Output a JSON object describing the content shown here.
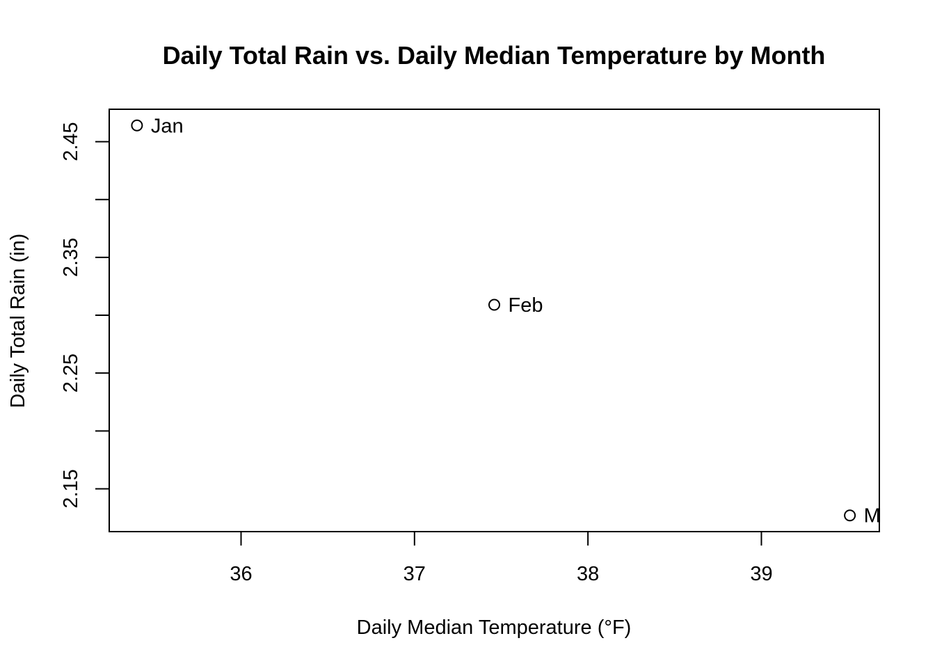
{
  "chart_data": {
    "type": "scatter",
    "title": "Daily Total Rain vs. Daily Median Temperature by Month",
    "xlabel": "Daily Median Temperature (°F)",
    "ylabel": "Daily Total Rain (in)",
    "xlim": [
      35.24,
      39.68
    ],
    "ylim": [
      2.113,
      2.478
    ],
    "x_ticks": [
      36,
      37,
      38,
      39
    ],
    "x_tick_labels": [
      "36",
      "37",
      "38",
      "39"
    ],
    "y_ticks": [
      2.15,
      2.2,
      2.25,
      2.3,
      2.35,
      2.4,
      2.45
    ],
    "y_tick_labels": [
      "2.15",
      "",
      "2.25",
      "",
      "2.35",
      "",
      "2.45"
    ],
    "grid": false,
    "legend": "none",
    "marker": "open-circle",
    "points": [
      {
        "label": "Jan",
        "x": 35.4,
        "y": 2.464
      },
      {
        "label": "Feb",
        "x": 37.46,
        "y": 2.309
      },
      {
        "label": "M",
        "x": 39.51,
        "y": 2.127
      }
    ]
  }
}
